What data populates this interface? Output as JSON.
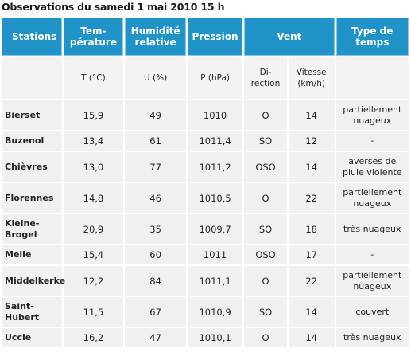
{
  "caption": "Observations du samedi 1 mai 2010 15 h",
  "headers": {
    "stations": "Stations",
    "temp": [
      "Tem-",
      "pérature"
    ],
    "humid": [
      "Humidité",
      "relative"
    ],
    "pressure": "Pression",
    "wind": "Vent",
    "weather": [
      "Type de",
      "temps"
    ]
  },
  "units": {
    "temp": "T (°C)",
    "humid": "U (%)",
    "pressure": "P (hPa)",
    "direction": [
      "Di-",
      "rection"
    ],
    "speed": [
      "Vitesse",
      "(km/h)"
    ]
  },
  "rows": [
    {
      "station": [
        "Bierset"
      ],
      "t": "15,9",
      "u": "49",
      "p": "1010",
      "dir": "O",
      "speed": "14",
      "weather": [
        "partiellement",
        "nuageux"
      ]
    },
    {
      "station": [
        "Buzenol"
      ],
      "t": "13,4",
      "u": "61",
      "p": "1011,4",
      "dir": "SO",
      "speed": "12",
      "weather": [
        "-"
      ]
    },
    {
      "station": [
        "Chièvres"
      ],
      "t": "13,0",
      "u": "77",
      "p": "1011,2",
      "dir": "OSO",
      "speed": "14",
      "weather": [
        "averses de",
        "pluie violente"
      ]
    },
    {
      "station": [
        "Florennes"
      ],
      "t": "14,8",
      "u": "46",
      "p": "1010,5",
      "dir": "O",
      "speed": "22",
      "weather": [
        "partiellement",
        "nuageux"
      ]
    },
    {
      "station": [
        "Kleine-",
        "Brogel"
      ],
      "t": "20,9",
      "u": "35",
      "p": "1009,7",
      "dir": "SO",
      "speed": "18",
      "weather": [
        "très nuageux"
      ]
    },
    {
      "station": [
        "Melle"
      ],
      "t": "15,4",
      "u": "60",
      "p": "1011",
      "dir": "OSO",
      "speed": "17",
      "weather": [
        "-"
      ]
    },
    {
      "station": [
        "Middelkerke"
      ],
      "t": "12,2",
      "u": "84",
      "p": "1011,1",
      "dir": "O",
      "speed": "22",
      "weather": [
        "partiellement",
        "nuageux"
      ]
    },
    {
      "station": [
        "Saint-",
        "Hubert"
      ],
      "t": "11,5",
      "u": "67",
      "p": "1010,9",
      "dir": "SO",
      "speed": "14",
      "weather": [
        "couvert"
      ]
    },
    {
      "station": [
        "Uccle"
      ],
      "t": "16,2",
      "u": "47",
      "p": "1010,1",
      "dir": "O",
      "speed": "14",
      "weather": [
        "très nuageux"
      ]
    }
  ]
}
